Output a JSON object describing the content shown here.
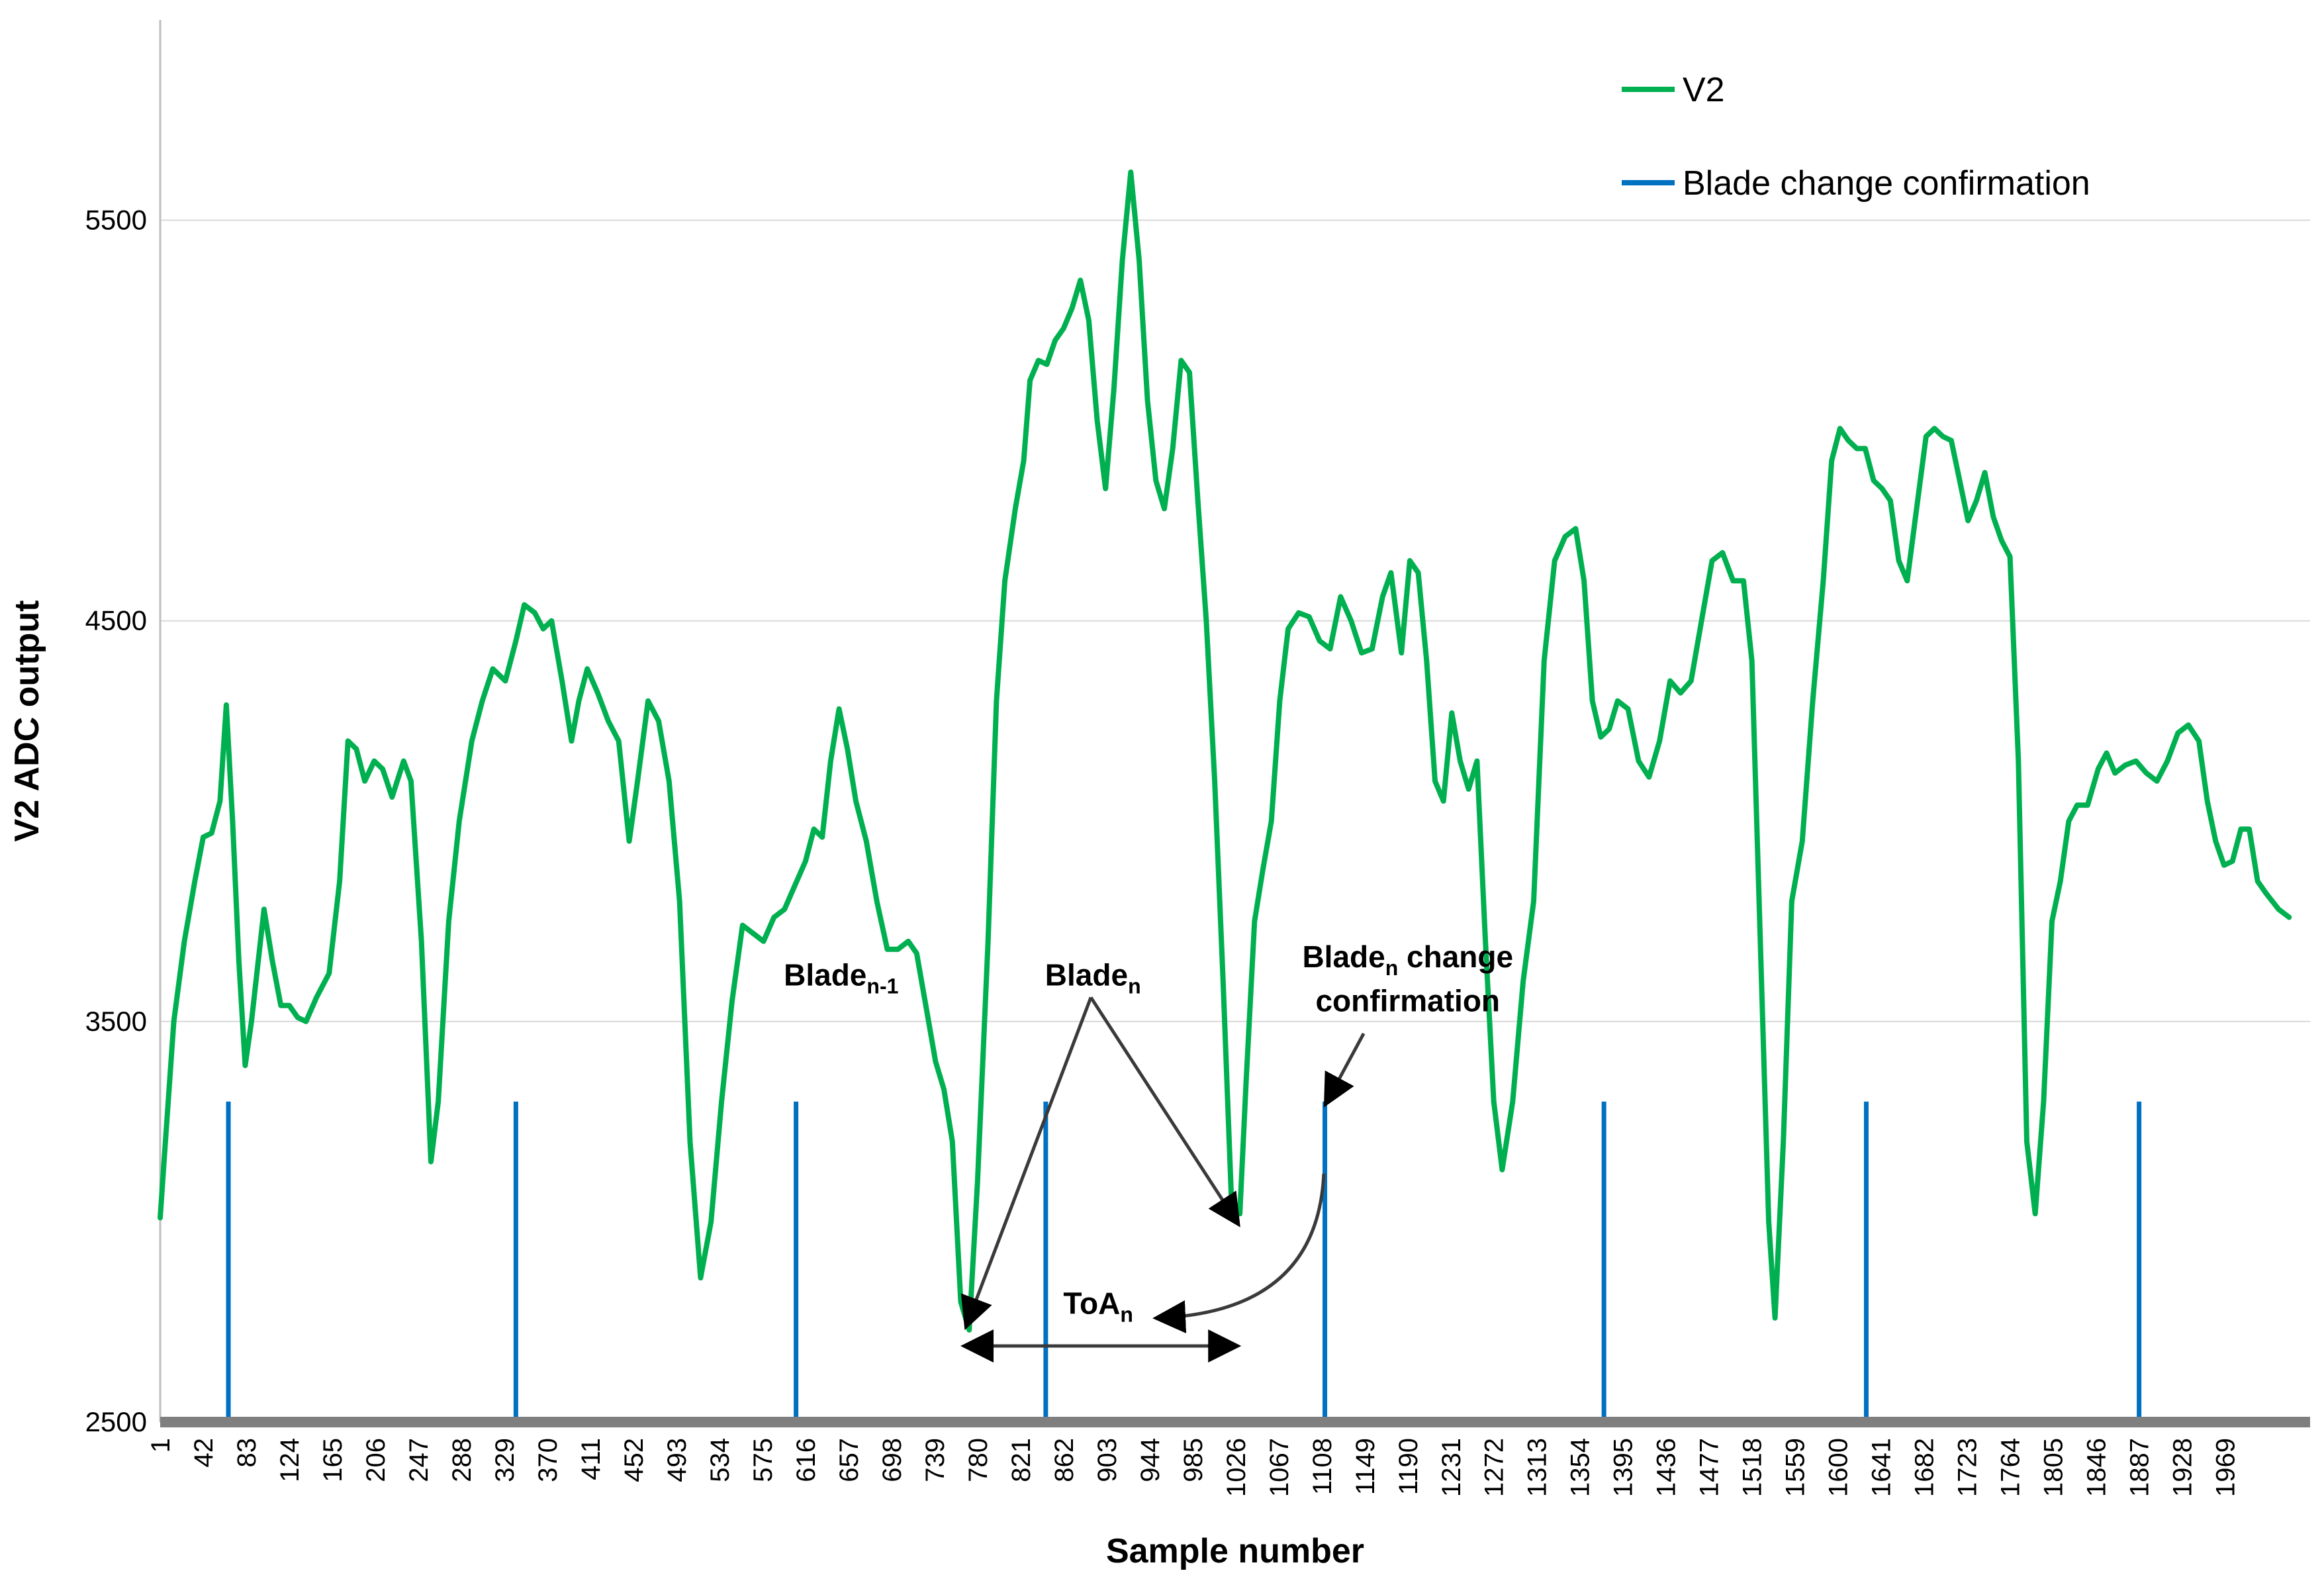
{
  "chart_data": {
    "type": "line",
    "title": "",
    "xlabel": "Sample number",
    "ylabel": "V2 ADC output",
    "xlim": [
      1,
      2050
    ],
    "ylim": [
      2500,
      6000
    ],
    "grid": true,
    "legend_position": "top-right",
    "y_ticks": [
      2500,
      3500,
      4500,
      5500
    ],
    "x_tick_labels": [
      "1",
      "42",
      "83",
      "124",
      "165",
      "206",
      "247",
      "288",
      "329",
      "370",
      "411",
      "452",
      "493",
      "534",
      "575",
      "616",
      "657",
      "698",
      "739",
      "780",
      "821",
      "862",
      "903",
      "944",
      "985",
      "1026",
      "1067",
      "1108",
      "1149",
      "1190",
      "1231",
      "1272",
      "1313",
      "1354",
      "1395",
      "1436",
      "1477",
      "1518",
      "1559",
      "1600",
      "1641",
      "1682",
      "1723",
      "1764",
      "1805",
      "1846",
      "1887",
      "1928",
      "1969"
    ],
    "series": [
      {
        "name": "V2",
        "color": "#00b050",
        "kind": "line",
        "points": [
          [
            1,
            3010
          ],
          [
            6,
            3200
          ],
          [
            14,
            3500
          ],
          [
            24,
            3700
          ],
          [
            34,
            3850
          ],
          [
            42,
            3960
          ],
          [
            50,
            3970
          ],
          [
            58,
            4050
          ],
          [
            64,
            4290
          ],
          [
            70,
            4000
          ],
          [
            76,
            3650
          ],
          [
            82,
            3390
          ],
          [
            88,
            3500
          ],
          [
            100,
            3780
          ],
          [
            108,
            3650
          ],
          [
            116,
            3540
          ],
          [
            124,
            3540
          ],
          [
            132,
            3510
          ],
          [
            140,
            3500
          ],
          [
            150,
            3560
          ],
          [
            162,
            3620
          ],
          [
            172,
            3850
          ],
          [
            180,
            4200
          ],
          [
            188,
            4180
          ],
          [
            196,
            4100
          ],
          [
            205,
            4150
          ],
          [
            213,
            4130
          ],
          [
            222,
            4060
          ],
          [
            233,
            4150
          ],
          [
            240,
            4100
          ],
          [
            250,
            3700
          ],
          [
            259,
            3150
          ],
          [
            266,
            3300
          ],
          [
            276,
            3750
          ],
          [
            286,
            4000
          ],
          [
            298,
            4200
          ],
          [
            308,
            4300
          ],
          [
            318,
            4380
          ],
          [
            330,
            4350
          ],
          [
            340,
            4450
          ],
          [
            348,
            4540
          ],
          [
            358,
            4520
          ],
          [
            366,
            4480
          ],
          [
            374,
            4500
          ],
          [
            384,
            4350
          ],
          [
            393,
            4200
          ],
          [
            400,
            4300
          ],
          [
            408,
            4380
          ],
          [
            418,
            4320
          ],
          [
            428,
            4250
          ],
          [
            438,
            4200
          ],
          [
            448,
            3950
          ],
          [
            456,
            4100
          ],
          [
            466,
            4300
          ],
          [
            476,
            4250
          ],
          [
            486,
            4100
          ],
          [
            496,
            3800
          ],
          [
            506,
            3200
          ],
          [
            516,
            2860
          ],
          [
            526,
            3000
          ],
          [
            536,
            3300
          ],
          [
            546,
            3550
          ],
          [
            556,
            3740
          ],
          [
            566,
            3720
          ],
          [
            576,
            3700
          ],
          [
            586,
            3760
          ],
          [
            596,
            3780
          ],
          [
            606,
            3840
          ],
          [
            616,
            3900
          ],
          [
            624,
            3980
          ],
          [
            632,
            3960
          ],
          [
            640,
            4150
          ],
          [
            648,
            4280
          ],
          [
            656,
            4180
          ],
          [
            664,
            4050
          ],
          [
            674,
            3950
          ],
          [
            684,
            3800
          ],
          [
            694,
            3680
          ],
          [
            704,
            3680
          ],
          [
            714,
            3700
          ],
          [
            722,
            3670
          ],
          [
            732,
            3520
          ],
          [
            740,
            3400
          ],
          [
            748,
            3330
          ],
          [
            756,
            3200
          ],
          [
            764,
            2800
          ],
          [
            772,
            2730
          ],
          [
            780,
            3100
          ],
          [
            790,
            3700
          ],
          [
            798,
            4300
          ],
          [
            806,
            4600
          ],
          [
            816,
            4780
          ],
          [
            824,
            4900
          ],
          [
            830,
            5100
          ],
          [
            838,
            5150
          ],
          [
            846,
            5140
          ],
          [
            854,
            5200
          ],
          [
            862,
            5230
          ],
          [
            870,
            5280
          ],
          [
            878,
            5350
          ],
          [
            886,
            5250
          ],
          [
            894,
            5000
          ],
          [
            902,
            4830
          ],
          [
            910,
            5080
          ],
          [
            918,
            5400
          ],
          [
            926,
            5620
          ],
          [
            934,
            5400
          ],
          [
            942,
            5050
          ],
          [
            950,
            4850
          ],
          [
            958,
            4780
          ],
          [
            966,
            4930
          ],
          [
            974,
            5150
          ],
          [
            982,
            5120
          ],
          [
            990,
            4800
          ],
          [
            998,
            4500
          ],
          [
            1006,
            4100
          ],
          [
            1014,
            3600
          ],
          [
            1022,
            3050
          ],
          [
            1030,
            3020
          ],
          [
            1036,
            3350
          ],
          [
            1044,
            3750
          ],
          [
            1052,
            3880
          ],
          [
            1060,
            4000
          ],
          [
            1068,
            4300
          ],
          [
            1076,
            4480
          ],
          [
            1086,
            4520
          ],
          [
            1096,
            4510
          ],
          [
            1106,
            4450
          ],
          [
            1116,
            4430
          ],
          [
            1126,
            4560
          ],
          [
            1136,
            4500
          ],
          [
            1146,
            4420
          ],
          [
            1156,
            4430
          ],
          [
            1166,
            4560
          ],
          [
            1174,
            4620
          ],
          [
            1184,
            4420
          ],
          [
            1192,
            4650
          ],
          [
            1200,
            4620
          ],
          [
            1208,
            4400
          ],
          [
            1216,
            4100
          ],
          [
            1224,
            4050
          ],
          [
            1232,
            4270
          ],
          [
            1240,
            4150
          ],
          [
            1248,
            4080
          ],
          [
            1256,
            4150
          ],
          [
            1264,
            3700
          ],
          [
            1272,
            3300
          ],
          [
            1280,
            3130
          ],
          [
            1290,
            3300
          ],
          [
            1300,
            3600
          ],
          [
            1310,
            3800
          ],
          [
            1320,
            4400
          ],
          [
            1330,
            4650
          ],
          [
            1340,
            4710
          ],
          [
            1350,
            4730
          ],
          [
            1358,
            4600
          ],
          [
            1366,
            4300
          ],
          [
            1374,
            4210
          ],
          [
            1382,
            4230
          ],
          [
            1390,
            4300
          ],
          [
            1400,
            4280
          ],
          [
            1410,
            4150
          ],
          [
            1420,
            4110
          ],
          [
            1430,
            4200
          ],
          [
            1440,
            4350
          ],
          [
            1450,
            4320
          ],
          [
            1460,
            4350
          ],
          [
            1470,
            4500
          ],
          [
            1480,
            4650
          ],
          [
            1490,
            4670
          ],
          [
            1500,
            4600
          ],
          [
            1510,
            4600
          ],
          [
            1518,
            4400
          ],
          [
            1526,
            3700
          ],
          [
            1534,
            3000
          ],
          [
            1540,
            2760
          ],
          [
            1548,
            3200
          ],
          [
            1556,
            3800
          ],
          [
            1566,
            3950
          ],
          [
            1576,
            4300
          ],
          [
            1586,
            4600
          ],
          [
            1594,
            4900
          ],
          [
            1602,
            4980
          ],
          [
            1610,
            4950
          ],
          [
            1618,
            4930
          ],
          [
            1626,
            4930
          ],
          [
            1634,
            4850
          ],
          [
            1642,
            4830
          ],
          [
            1650,
            4800
          ],
          [
            1658,
            4650
          ],
          [
            1666,
            4600
          ],
          [
            1676,
            4800
          ],
          [
            1684,
            4960
          ],
          [
            1692,
            4980
          ],
          [
            1700,
            4960
          ],
          [
            1708,
            4950
          ],
          [
            1716,
            4850
          ],
          [
            1724,
            4750
          ],
          [
            1732,
            4800
          ],
          [
            1740,
            4870
          ],
          [
            1748,
            4760
          ],
          [
            1756,
            4700
          ],
          [
            1764,
            4660
          ],
          [
            1772,
            4150
          ],
          [
            1780,
            3200
          ],
          [
            1788,
            3020
          ],
          [
            1796,
            3300
          ],
          [
            1804,
            3750
          ],
          [
            1812,
            3850
          ],
          [
            1820,
            4000
          ],
          [
            1828,
            4040
          ],
          [
            1838,
            4040
          ],
          [
            1848,
            4130
          ],
          [
            1856,
            4170
          ],
          [
            1864,
            4120
          ],
          [
            1874,
            4140
          ],
          [
            1884,
            4150
          ],
          [
            1894,
            4120
          ],
          [
            1904,
            4100
          ],
          [
            1914,
            4150
          ],
          [
            1924,
            4220
          ],
          [
            1934,
            4240
          ],
          [
            1944,
            4200
          ],
          [
            1952,
            4050
          ],
          [
            1960,
            3950
          ],
          [
            1968,
            3890
          ],
          [
            1976,
            3900
          ],
          [
            1984,
            3980
          ],
          [
            1992,
            3980
          ],
          [
            2000,
            3850
          ],
          [
            2008,
            3820
          ],
          [
            2020,
            3780
          ],
          [
            2030,
            3760
          ]
        ]
      },
      {
        "name": "Blade change confirmation",
        "color": "#0070c0",
        "kind": "vertical-markers",
        "x": [
          66,
          340,
          607,
          845,
          1111,
          1377,
          1627,
          1887
        ],
        "top": 3300
      }
    ],
    "annotations": [
      {
        "id": "blade-n-1",
        "base": "Blade",
        "sub": "n-1",
        "x": 650,
        "y": 3590
      },
      {
        "id": "blade-n",
        "base": "Blade",
        "sub": "n",
        "x": 890,
        "y": 3590
      },
      {
        "id": "blade-n-change-1",
        "base": "Blade",
        "sub": "n",
        "suffix": " change",
        "x": 1190,
        "y": 3635
      },
      {
        "id": "blade-n-change-2",
        "base": "confirmation",
        "x": 1190,
        "y": 3525
      },
      {
        "id": "toa-n",
        "base": "ToA",
        "sub": "n",
        "x": 895,
        "y": 2770
      }
    ],
    "arrows": [
      {
        "id": "arrow-blade-n-left",
        "from": [
          888,
          3560
        ],
        "to": [
          770,
          2745
        ],
        "shape": "line"
      },
      {
        "id": "arrow-blade-n-right",
        "from": [
          888,
          3560
        ],
        "to": [
          1027,
          3000
        ],
        "shape": "line"
      },
      {
        "id": "arrow-confirm",
        "from": [
          1148,
          3470
        ],
        "to": [
          1113,
          3300
        ],
        "shape": "line"
      },
      {
        "id": "arrow-curve",
        "from": [
          1110,
          3120
        ],
        "to": [
          953,
          2760
        ],
        "shape": "curve"
      },
      {
        "id": "arrow-toa",
        "from": [
          770,
          2690
        ],
        "to": [
          1025,
          2690
        ],
        "shape": "double"
      }
    ]
  }
}
